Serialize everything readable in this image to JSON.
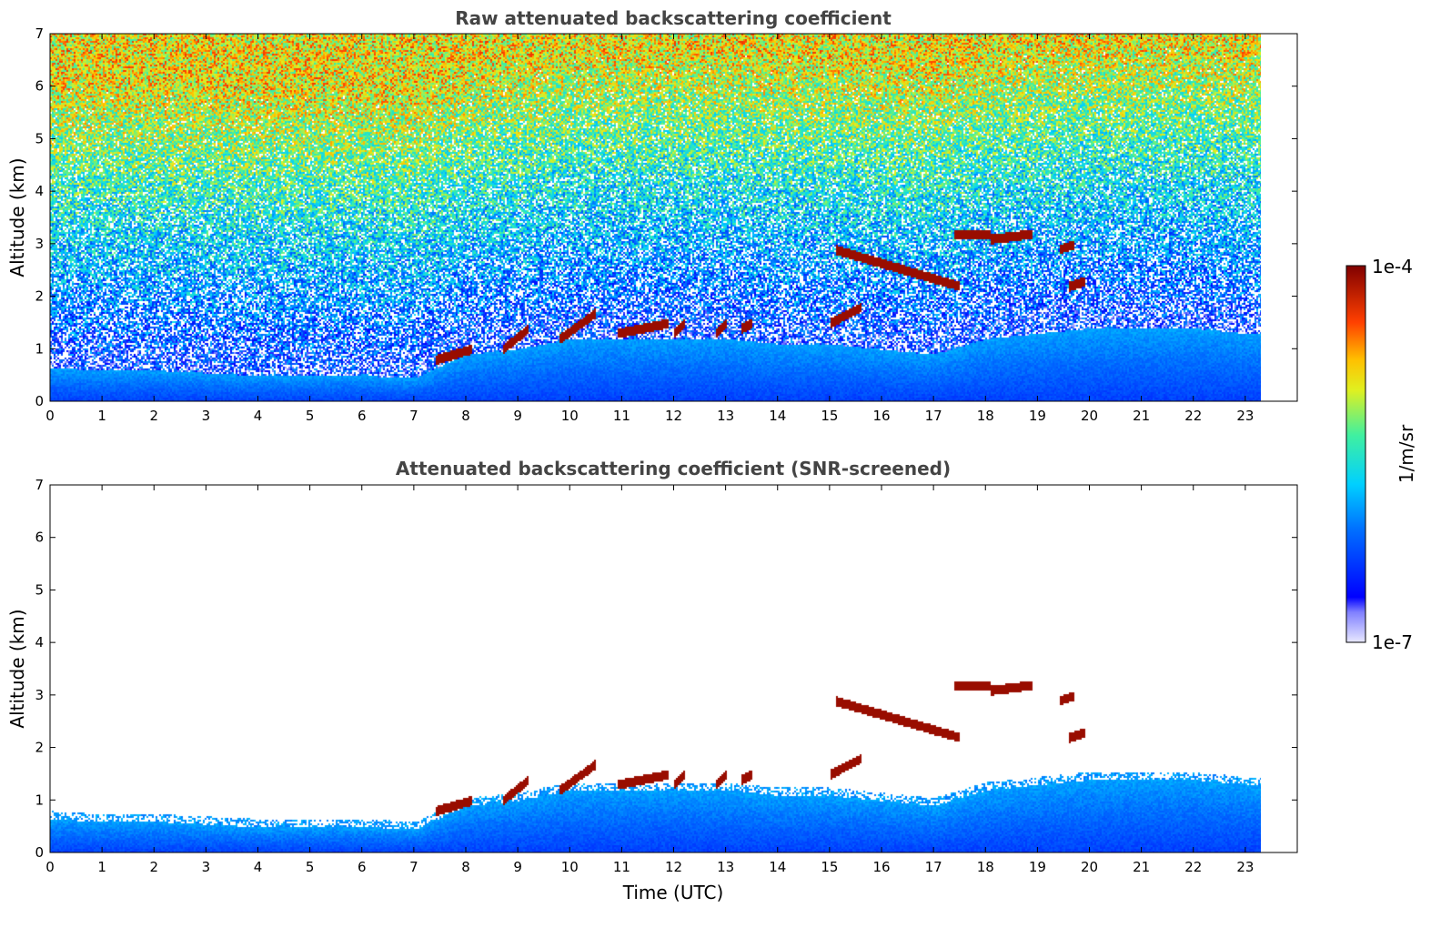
{
  "chart_data": [
    {
      "type": "heatmap",
      "title": "Raw attenuated backscattering coefficient",
      "xlabel": "",
      "ylabel": "Altitude (km)",
      "xlim": [
        0,
        24
      ],
      "ylim": [
        0,
        7
      ],
      "x_ticks": [
        "0",
        "1",
        "2",
        "3",
        "4",
        "5",
        "6",
        "7",
        "8",
        "9",
        "10",
        "11",
        "12",
        "13",
        "14",
        "15",
        "16",
        "17",
        "18",
        "19",
        "20",
        "21",
        "22",
        "23"
      ],
      "y_ticks": [
        "0",
        "1",
        "2",
        "3",
        "4",
        "5",
        "6",
        "7"
      ],
      "data_extent_hours": [
        0,
        23.3
      ],
      "screened": false,
      "features": {
        "boundary_layer_top_km": [
          [
            0,
            0.65
          ],
          [
            1,
            0.6
          ],
          [
            2,
            0.6
          ],
          [
            3,
            0.55
          ],
          [
            4,
            0.5
          ],
          [
            5,
            0.5
          ],
          [
            6,
            0.5
          ],
          [
            7,
            0.45
          ],
          [
            8,
            0.9
          ],
          [
            9,
            1.0
          ],
          [
            10,
            1.2
          ],
          [
            11,
            1.2
          ],
          [
            12,
            1.2
          ],
          [
            13,
            1.2
          ],
          [
            14,
            1.1
          ],
          [
            15,
            1.1
          ],
          [
            16,
            1.0
          ],
          [
            17,
            0.9
          ],
          [
            18,
            1.2
          ],
          [
            19,
            1.3
          ],
          [
            20,
            1.4
          ],
          [
            21,
            1.4
          ],
          [
            22,
            1.4
          ],
          [
            23,
            1.3
          ]
        ],
        "cloud_segments": [
          {
            "t": [
              7.4,
              8.1
            ],
            "alt_km": [
              0.8,
              1.0
            ]
          },
          {
            "t": [
              8.7,
              9.2
            ],
            "alt_km": [
              1.0,
              1.4
            ]
          },
          {
            "t": [
              9.8,
              10.5
            ],
            "alt_km": [
              1.2,
              1.7
            ]
          },
          {
            "t": [
              10.9,
              11.9
            ],
            "alt_km": [
              1.3,
              1.5
            ]
          },
          {
            "t": [
              12.0,
              12.2
            ],
            "alt_km": [
              1.3,
              1.5
            ]
          },
          {
            "t": [
              12.8,
              13.0
            ],
            "alt_km": [
              1.3,
              1.5
            ]
          },
          {
            "t": [
              13.3,
              13.5
            ],
            "alt_km": [
              1.4,
              1.5
            ]
          },
          {
            "t": [
              15.0,
              15.6
            ],
            "alt_km": [
              1.5,
              1.8
            ]
          },
          {
            "t": [
              15.1,
              17.5
            ],
            "alt_km": [
              2.9,
              2.2
            ]
          },
          {
            "t": [
              17.4,
              18.1
            ],
            "alt_km": [
              3.2,
              3.2
            ]
          },
          {
            "t": [
              18.1,
              18.9
            ],
            "alt_km": [
              3.1,
              3.2
            ]
          },
          {
            "t": [
              19.4,
              19.7
            ],
            "alt_km": [
              2.9,
              3.0
            ]
          },
          {
            "t": [
              19.6,
              19.9
            ],
            "alt_km": [
              2.2,
              2.3
            ]
          }
        ]
      }
    },
    {
      "type": "heatmap",
      "title": "Attenuated backscattering coefficient (SNR-screened)",
      "xlabel": "Time (UTC)",
      "ylabel": "Altitude (km)",
      "xlim": [
        0,
        24
      ],
      "ylim": [
        0,
        7
      ],
      "x_ticks": [
        "0",
        "1",
        "2",
        "3",
        "4",
        "5",
        "6",
        "7",
        "8",
        "9",
        "10",
        "11",
        "12",
        "13",
        "14",
        "15",
        "16",
        "17",
        "18",
        "19",
        "20",
        "21",
        "22",
        "23"
      ],
      "y_ticks": [
        "0",
        "1",
        "2",
        "3",
        "4",
        "5",
        "6",
        "7"
      ],
      "data_extent_hours": [
        0,
        23.3
      ],
      "screened": true
    }
  ],
  "colorbar": {
    "label": "1/m/sr",
    "min_label": "1e-7",
    "max_label": "1e-4",
    "scale": "log",
    "colormap": "jet"
  }
}
